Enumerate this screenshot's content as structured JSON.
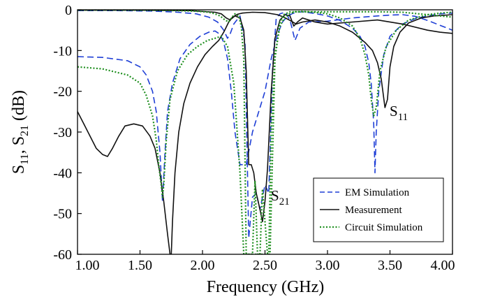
{
  "chart_data": {
    "type": "line",
    "xlabel": "Frequency (GHz)",
    "ylabel": {
      "s1": "S",
      "sub1": "11",
      "sep": ", S",
      "sub2": "21",
      "unit": " (dB)"
    },
    "xlim": [
      1.0,
      4.0
    ],
    "ylim": [
      -60,
      0
    ],
    "xticks": [
      1.0,
      1.5,
      2.0,
      2.5,
      3.0,
      3.5,
      4.0
    ],
    "xtick_labels": [
      "1.00",
      "1.50",
      "2.00",
      "2.50",
      "3.00",
      "3.50",
      "4.00"
    ],
    "yticks": [
      0,
      -10,
      -20,
      -30,
      -40,
      -50,
      -60
    ],
    "ytick_labels": [
      "0",
      "-10",
      "-20",
      "-30",
      "-40",
      "-50",
      "-60"
    ],
    "grid": false,
    "legend_position": "bottom-right",
    "annotations": [
      {
        "id": "s11",
        "main": "S",
        "sub": "11",
        "x": 3.5,
        "y": -26
      },
      {
        "id": "s21",
        "main": "S",
        "sub": "21",
        "x": 2.58,
        "y": -46
      }
    ],
    "series": [
      {
        "name": "EM Simulation",
        "key": "em_s11",
        "style": "dashed",
        "color": "#1f3fd6",
        "x": [
          1.0,
          1.2,
          1.4,
          1.5,
          1.55,
          1.6,
          1.63,
          1.66,
          1.68,
          1.7,
          1.72,
          1.76,
          1.82,
          1.9,
          1.98,
          2.05,
          2.1,
          2.14,
          2.17,
          2.2,
          2.23,
          2.26,
          2.3,
          2.35,
          2.4,
          2.5,
          2.55,
          2.6,
          2.64,
          2.68,
          2.72,
          2.76,
          2.8,
          2.9,
          3.0,
          3.1,
          3.2,
          3.26,
          3.3,
          3.33,
          3.35,
          3.37,
          3.38,
          3.39,
          3.41,
          3.45,
          3.5,
          3.6,
          3.7,
          3.8,
          3.9,
          4.0
        ],
        "y": [
          -11.5,
          -11.7,
          -12.5,
          -14,
          -16,
          -20,
          -25,
          -35,
          -47,
          -35,
          -25,
          -18,
          -12,
          -8.5,
          -6.5,
          -5.5,
          -5.2,
          -6,
          -8,
          -12,
          -20,
          -30,
          -38,
          -38,
          -30,
          -20,
          -12,
          -6,
          -3,
          -1.6,
          -0.9,
          -0.6,
          -0.5,
          -0.9,
          -1.5,
          -2.6,
          -4.5,
          -6.5,
          -9,
          -13,
          -18,
          -28,
          -40,
          -30,
          -20,
          -11,
          -6.5,
          -3.5,
          -2.2,
          -1.5,
          -1,
          -0.8
        ]
      },
      {
        "name": "EM Simulation",
        "key": "em_s21",
        "style": "dashed",
        "color": "#1f3fd6",
        "x": [
          1.0,
          1.3,
          1.6,
          1.8,
          1.95,
          2.05,
          2.12,
          2.17,
          2.2,
          2.22,
          2.25,
          2.3,
          2.34,
          2.37,
          2.4,
          2.43,
          2.46,
          2.5,
          2.53,
          2.56,
          2.59,
          2.62,
          2.66,
          2.7,
          2.74,
          2.78,
          2.85,
          3.0,
          3.2,
          3.4,
          3.5,
          3.6,
          3.7,
          3.8,
          3.9,
          4.0
        ],
        "y": [
          -0.2,
          -0.2,
          -0.3,
          -0.6,
          -1,
          -1.8,
          -3,
          -5,
          -7,
          -6,
          -3.5,
          -1.5,
          -8,
          -56,
          -46,
          -45,
          -49,
          -43,
          -45,
          -15,
          -2,
          -1,
          -0.6,
          -2.5,
          -7.5,
          -4.5,
          -3,
          -2.8,
          -2,
          -1.5,
          -1.3,
          -1.2,
          -1.6,
          -2.6,
          -3.8,
          -5
        ]
      },
      {
        "name": "Measurement",
        "key": "meas_s11",
        "style": "solid",
        "color": "#111111",
        "x": [
          1.0,
          1.05,
          1.1,
          1.15,
          1.2,
          1.24,
          1.28,
          1.33,
          1.38,
          1.45,
          1.52,
          1.58,
          1.62,
          1.66,
          1.69,
          1.72,
          1.74,
          1.75,
          1.76,
          1.78,
          1.81,
          1.85,
          1.9,
          1.96,
          2.02,
          2.08,
          2.13,
          2.17,
          2.21,
          2.24,
          2.28,
          2.32,
          2.4,
          2.5,
          2.6,
          2.65,
          2.7,
          2.75,
          2.8,
          2.9,
          3.0,
          3.1,
          3.2,
          3.3,
          3.36,
          3.4,
          3.43,
          3.46,
          3.48,
          3.5,
          3.53,
          3.58,
          3.65,
          3.75,
          3.85,
          4.0
        ],
        "y": [
          -25,
          -28,
          -31,
          -34,
          -35.5,
          -36,
          -34,
          -31,
          -28.5,
          -28,
          -28.5,
          -31,
          -34,
          -40,
          -47,
          -55,
          -60,
          -60,
          -52,
          -40,
          -30,
          -23,
          -18,
          -14,
          -11,
          -9,
          -7.5,
          -5.5,
          -3,
          -1.8,
          -1.1,
          -0.8,
          -0.6,
          -0.7,
          -1.2,
          -1.8,
          -2.6,
          -3.5,
          -3,
          -2.5,
          -3,
          -4,
          -5.5,
          -8,
          -10,
          -13,
          -17,
          -24,
          -22,
          -14,
          -9,
          -5.5,
          -3.2,
          -2,
          -1.5,
          -1.2
        ]
      },
      {
        "name": "Measurement",
        "key": "meas_s21",
        "style": "solid",
        "color": "#111111",
        "x": [
          1.0,
          1.5,
          1.9,
          2.1,
          2.15,
          2.19,
          2.22,
          2.26,
          2.3,
          2.33,
          2.35,
          2.37,
          2.39,
          2.41,
          2.43,
          2.46,
          2.48,
          2.5,
          2.52,
          2.55,
          2.58,
          2.62,
          2.66,
          2.7,
          2.73,
          2.76,
          2.8,
          2.9,
          3.0,
          3.2,
          3.4,
          3.6,
          3.8,
          3.9,
          4.0
        ],
        "y": [
          -0.1,
          -0.1,
          -0.2,
          -0.6,
          -1,
          -2,
          -2.5,
          -1.5,
          -2,
          -5,
          -15,
          -38,
          -38,
          -40,
          -45,
          -49,
          -52,
          -47,
          -39,
          -20,
          -7,
          -2.5,
          -1.2,
          -1.5,
          -4,
          -3,
          -2,
          -3,
          -3.5,
          -3,
          -2.5,
          -3.5,
          -5,
          -5.5,
          -5.8
        ]
      },
      {
        "name": "Circuit Simulation",
        "key": "circ_s11",
        "style": "dotted",
        "color": "#1f8f1f",
        "x": [
          1.0,
          1.2,
          1.4,
          1.5,
          1.55,
          1.6,
          1.63,
          1.65,
          1.67,
          1.68,
          1.69,
          1.71,
          1.74,
          1.8,
          1.88,
          1.96,
          2.04,
          2.1,
          2.15,
          2.2,
          2.25,
          2.3,
          2.33,
          2.36,
          2.5,
          2.53,
          2.55,
          2.58,
          2.62,
          2.66,
          2.7,
          2.74,
          2.8,
          2.9,
          3.0,
          3.1,
          3.2,
          3.26,
          3.3,
          3.33,
          3.35,
          3.37,
          3.39,
          3.42,
          3.47,
          3.55,
          3.65,
          3.8,
          3.9,
          4.0
        ],
        "y": [
          -14,
          -14.5,
          -16,
          -18,
          -21,
          -26,
          -32,
          -38,
          -43,
          -46,
          -43,
          -32,
          -22,
          -15,
          -11,
          -9,
          -7.5,
          -7,
          -6.5,
          -9,
          -18,
          -40,
          -60,
          -60,
          -60,
          -60,
          -30,
          -11,
          -4,
          -1.8,
          -0.9,
          -0.5,
          -0.4,
          -0.6,
          -1,
          -2,
          -4,
          -7,
          -11,
          -16,
          -22,
          -26,
          -24,
          -15,
          -9,
          -5,
          -2.5,
          -1.2,
          -0.8,
          -0.6
        ]
      },
      {
        "name": "Circuit Simulation",
        "key": "circ_s21",
        "style": "dotted",
        "color": "#1f8f1f",
        "x": [
          1.0,
          1.3,
          1.6,
          1.8,
          1.95,
          2.05,
          2.1,
          2.14,
          2.18,
          2.21,
          2.23,
          2.26,
          2.29,
          2.31,
          2.33,
          2.35,
          2.4,
          2.42,
          2.44,
          2.46,
          2.48,
          2.52,
          2.54,
          2.58,
          2.62,
          2.65,
          2.7,
          2.8,
          3.0,
          3.2,
          3.4,
          3.6,
          3.8,
          4.0
        ],
        "y": [
          -0.05,
          -0.05,
          -0.1,
          -0.2,
          -0.35,
          -0.6,
          -1,
          -1.5,
          -2.5,
          -3,
          -2,
          -1,
          -1.5,
          -4,
          -12,
          -60,
          -60,
          -42,
          -60,
          -60,
          -44,
          -60,
          -60,
          -12,
          -3,
          -1.2,
          -0.5,
          -0.5,
          -0.5,
          -0.5,
          -0.5,
          -0.6,
          -1.2,
          -1.8
        ]
      }
    ],
    "legend": [
      {
        "label": "EM Simulation",
        "style": "dashed",
        "color": "#1f3fd6"
      },
      {
        "label": "Measurement",
        "style": "solid",
        "color": "#111111"
      },
      {
        "label": "Circuit Simulation",
        "style": "dotted",
        "color": "#1f8f1f"
      }
    ]
  }
}
